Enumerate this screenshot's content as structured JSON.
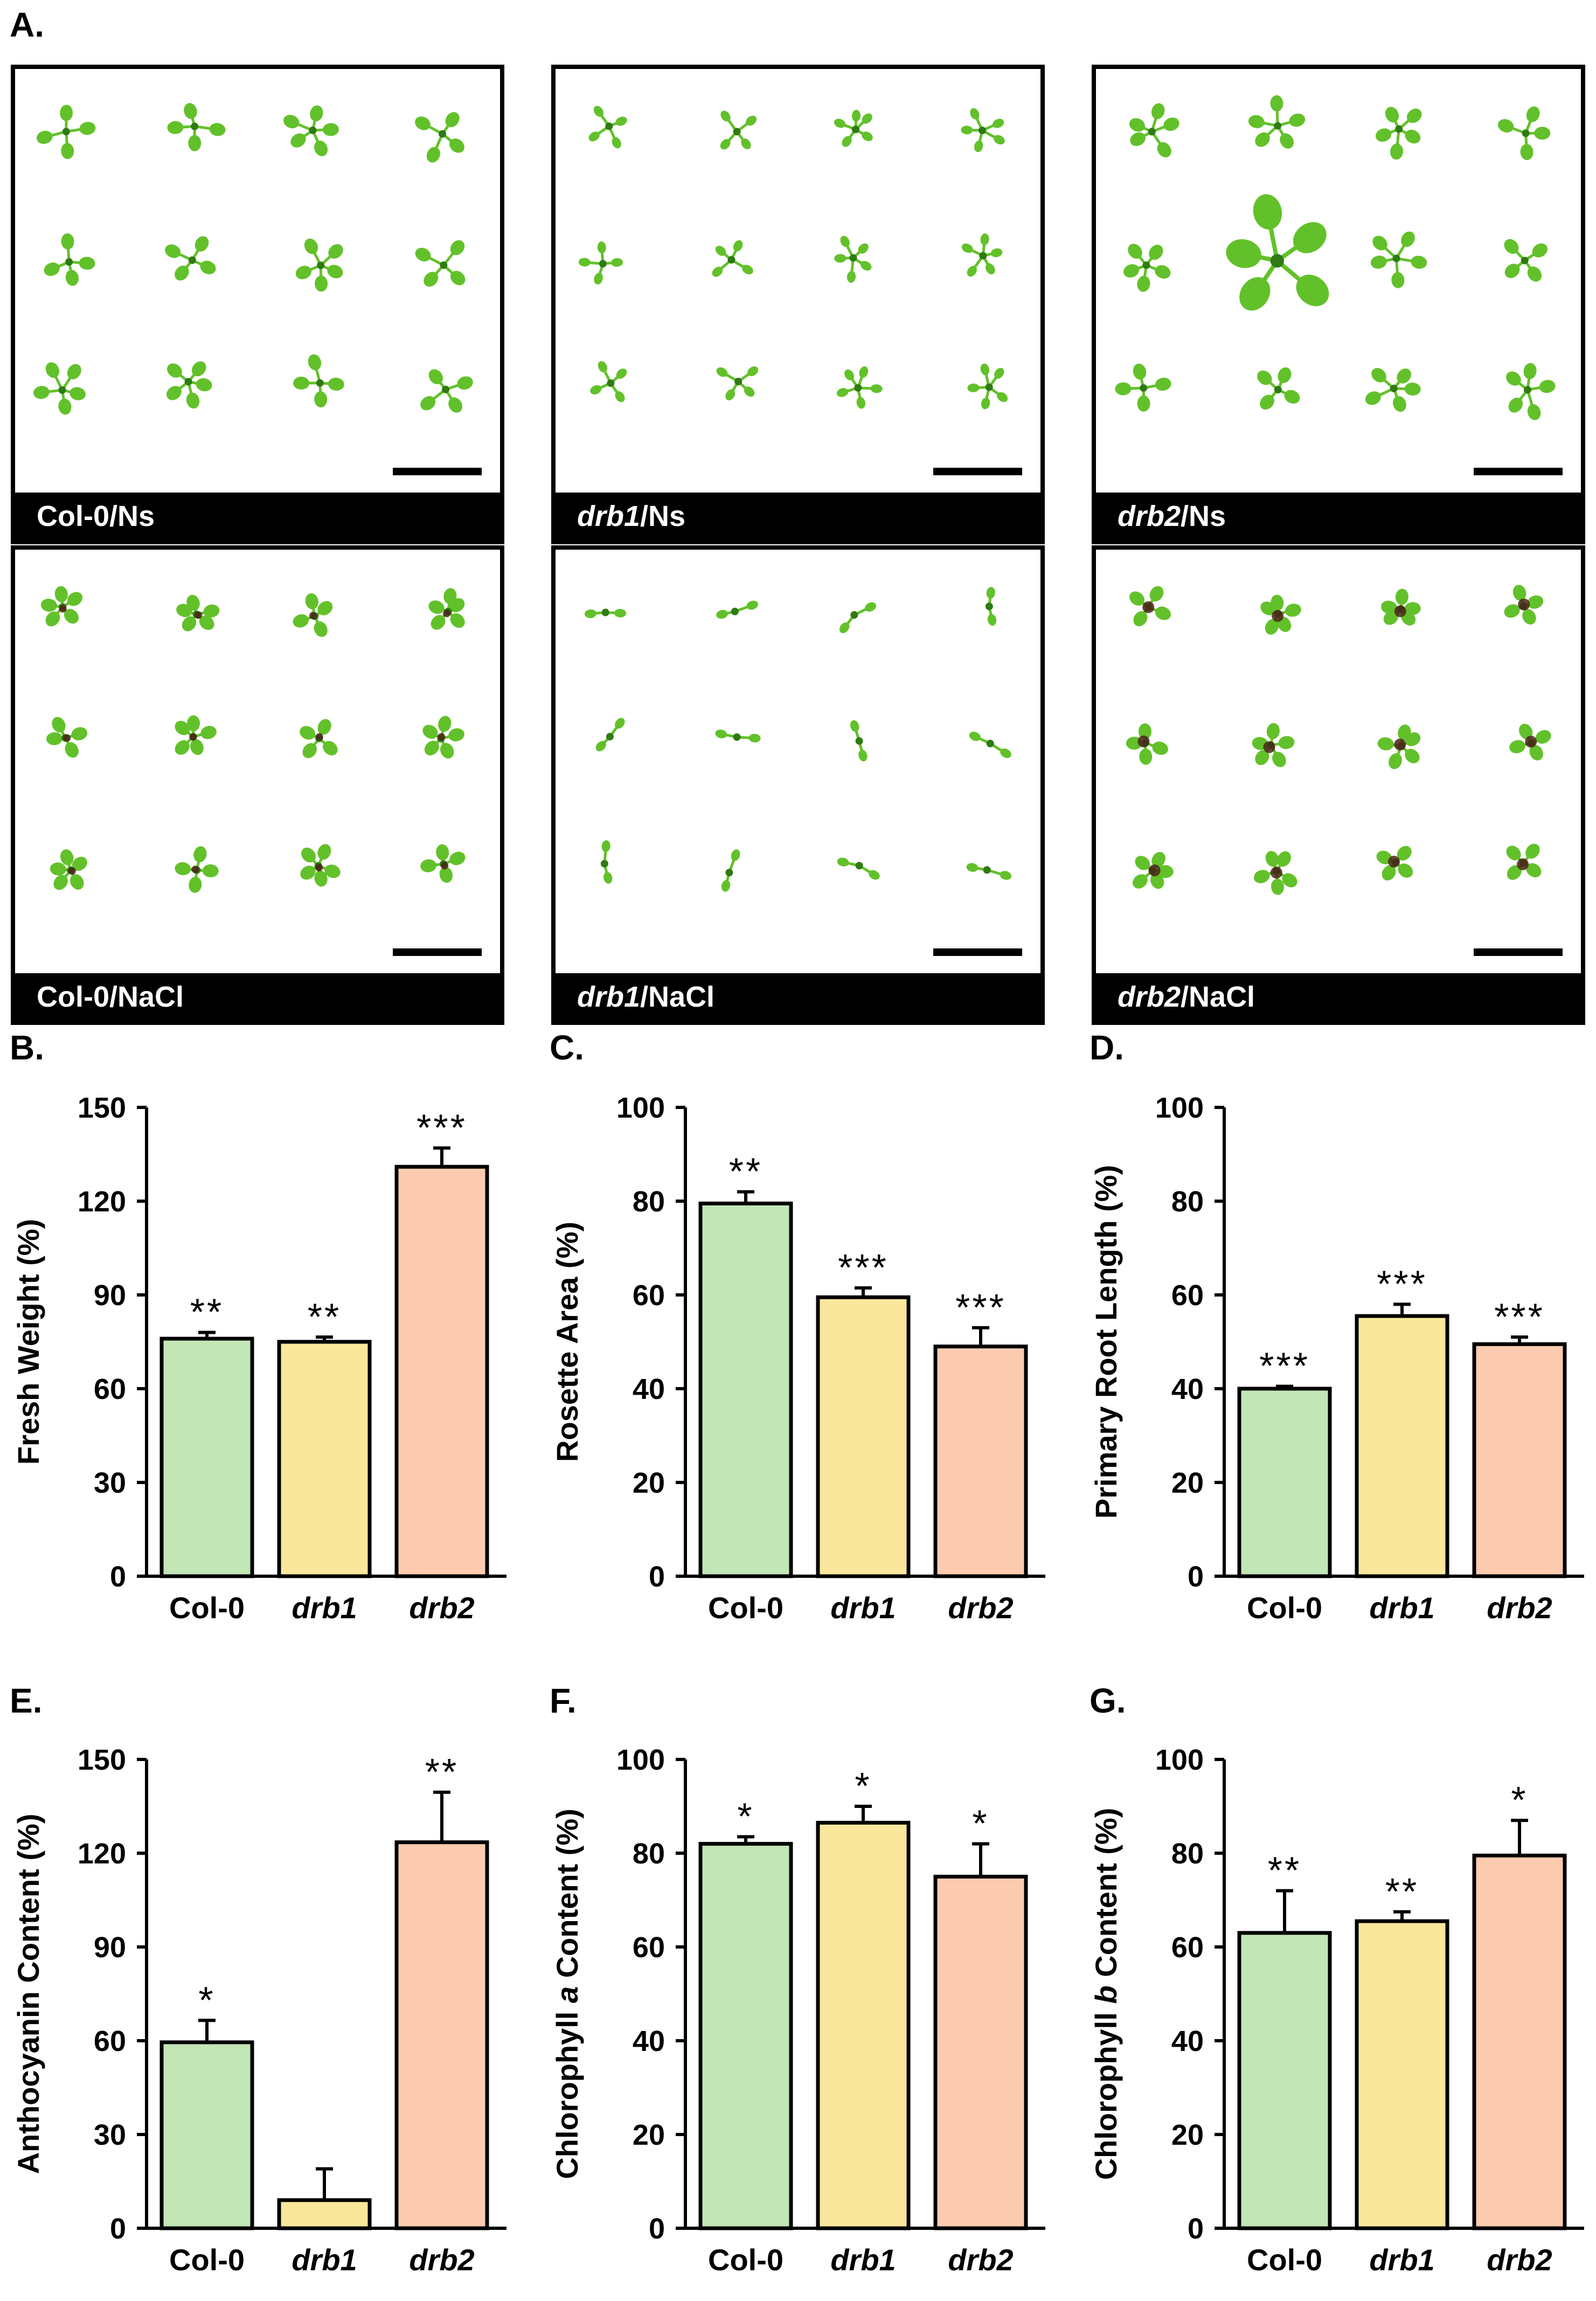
{
  "panels": {
    "A": "A.",
    "B": "B.",
    "C": "C.",
    "D": "D.",
    "E": "E.",
    "F": "F.",
    "G": "G."
  },
  "photos": [
    {
      "line": "Col-0",
      "line_italic": false,
      "condition": "/Ns",
      "stressed": false,
      "mutant": "col",
      "bar_color": "#5bb829"
    },
    {
      "line": "drb1",
      "line_italic": true,
      "condition": "/Ns",
      "stressed": false,
      "mutant": "drb1",
      "bar_color": "#5bb829"
    },
    {
      "line": "drb2",
      "line_italic": true,
      "condition": "/Ns",
      "stressed": false,
      "mutant": "drb2",
      "bar_color": "#5bb829"
    },
    {
      "line": "Col-0",
      "line_italic": false,
      "condition": "/NaCl",
      "stressed": true,
      "mutant": "col",
      "bar_color": "#5bb829"
    },
    {
      "line": "drb1",
      "line_italic": true,
      "condition": "/NaCl",
      "stressed": true,
      "mutant": "drb1",
      "bar_color": "#5bb829"
    },
    {
      "line": "drb2",
      "line_italic": true,
      "condition": "/NaCl",
      "stressed": true,
      "mutant": "drb2",
      "bar_color": "#5bb829"
    }
  ],
  "colors": {
    "col": "#c2e6b6",
    "drb1": "#fbe79b",
    "drb2": "#fdcbb0",
    "leaf": "#62c12a",
    "leaf_dark": "#2f7a12",
    "anthocyanin": "#4a2418"
  },
  "chart_data": [
    {
      "panel": "B.",
      "type": "bar",
      "ylabel": "Fresh Weight (%)",
      "categories": [
        "Col-0",
        "drb1",
        "drb2"
      ],
      "italic": [
        false,
        true,
        true
      ],
      "values": [
        76,
        75,
        131
      ],
      "errors": [
        2,
        1.5,
        6
      ],
      "significance": [
        "**",
        "**",
        "***"
      ],
      "ylim": [
        0,
        150
      ],
      "yticks": [
        0,
        30,
        60,
        90,
        120,
        150
      ]
    },
    {
      "panel": "C.",
      "type": "bar",
      "ylabel": "Rosette Area (%)",
      "categories": [
        "Col-0",
        "drb1",
        "drb2"
      ],
      "italic": [
        false,
        true,
        true
      ],
      "values": [
        79.5,
        59.5,
        49
      ],
      "errors": [
        2.5,
        2,
        4
      ],
      "significance": [
        "**",
        "***",
        "***"
      ],
      "ylim": [
        0,
        100
      ],
      "yticks": [
        0,
        20,
        40,
        60,
        80,
        100
      ]
    },
    {
      "panel": "D.",
      "type": "bar",
      "ylabel": "Primary Root Length (%)",
      "categories": [
        "Col-0",
        "drb1",
        "drb2"
      ],
      "italic": [
        false,
        true,
        true
      ],
      "values": [
        40,
        55.5,
        49.5
      ],
      "errors": [
        0.5,
        2.5,
        1.5
      ],
      "significance": [
        "***",
        "***",
        "***"
      ],
      "ylim": [
        0,
        100
      ],
      "yticks": [
        0,
        20,
        40,
        60,
        80,
        100
      ]
    },
    {
      "panel": "E.",
      "type": "bar",
      "ylabel": "Anthocyanin Content (%)",
      "categories": [
        "Col-0",
        "drb1",
        "drb2"
      ],
      "italic": [
        false,
        true,
        true
      ],
      "values": [
        59.5,
        9,
        123.5
      ],
      "errors": [
        7,
        10,
        16
      ],
      "significance": [
        "*",
        "",
        "**"
      ],
      "ylim": [
        0,
        150
      ],
      "yticks": [
        0,
        30,
        60,
        90,
        120,
        150
      ]
    },
    {
      "panel": "F.",
      "type": "bar",
      "ylabel_parts": [
        "Chlorophyll ",
        "a",
        " Content (%)"
      ],
      "categories": [
        "Col-0",
        "drb1",
        "drb2"
      ],
      "italic": [
        false,
        true,
        true
      ],
      "values": [
        82,
        86.5,
        75
      ],
      "errors": [
        1.5,
        3.5,
        7
      ],
      "significance": [
        "*",
        "*",
        "*"
      ],
      "ylim": [
        0,
        100
      ],
      "yticks": [
        0,
        20,
        40,
        60,
        80,
        100
      ]
    },
    {
      "panel": "G.",
      "type": "bar",
      "ylabel_parts": [
        "Chlorophyll ",
        "b",
        " Content (%)"
      ],
      "categories": [
        "Col-0",
        "drb1",
        "drb2"
      ],
      "italic": [
        false,
        true,
        true
      ],
      "values": [
        63,
        65.5,
        79.5
      ],
      "errors": [
        9,
        2,
        7.5
      ],
      "significance": [
        "**",
        "**",
        "*"
      ],
      "ylim": [
        0,
        100
      ],
      "yticks": [
        0,
        20,
        40,
        60,
        80,
        100
      ]
    }
  ]
}
